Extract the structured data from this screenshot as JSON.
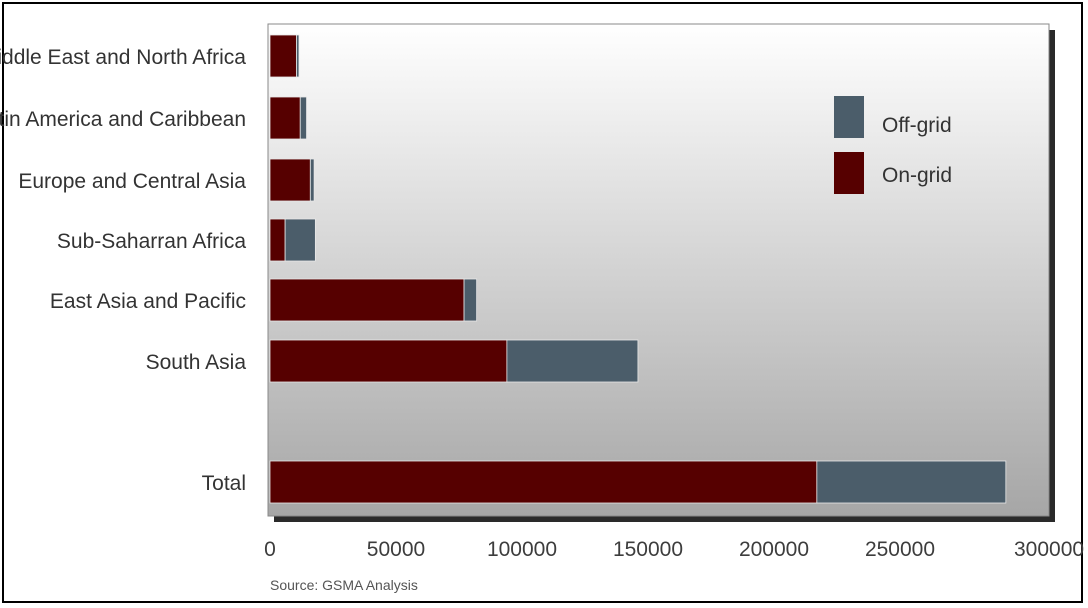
{
  "chart_data": {
    "type": "bar",
    "orientation": "horizontal",
    "stacked": true,
    "categories": [
      "Middle East and North Africa",
      "Latin America and Caribbean",
      "Europe and Central Asia",
      "Sub-Saharran Africa",
      "East Asia and Pacific",
      "South Asia",
      "Total"
    ],
    "series": [
      {
        "name": "On-grid",
        "color": "#560000",
        "values": [
          10500,
          12000,
          16000,
          6000,
          77000,
          94000,
          217000
        ]
      },
      {
        "name": "Off-grid",
        "color": "#4b5d6a",
        "values": [
          1000,
          2500,
          1500,
          12000,
          5000,
          52000,
          75000
        ]
      }
    ],
    "xlim": [
      0,
      300000
    ],
    "x_ticks": [
      "0",
      "50000",
      "100000",
      "150000",
      "200000",
      "250000",
      "300000"
    ],
    "legend": {
      "position": "top-right",
      "order": [
        "Off-grid",
        "On-grid"
      ]
    },
    "grid": false,
    "source": "Source: GSMA Analysis",
    "background_gradient": [
      "#ffffff",
      "#a8a8a8"
    ]
  }
}
